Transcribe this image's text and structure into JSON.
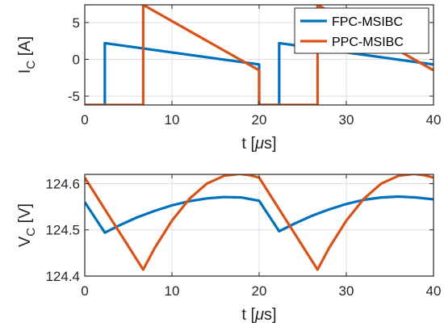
{
  "chart_data": [
    {
      "type": "line",
      "xlabel_main": "t [",
      "xlabel_sym": "μ",
      "xlabel_unit": "s]",
      "ylabel_main": "I",
      "ylabel_sub": "C",
      "ylabel_unit": " [A]",
      "xlim": [
        0,
        40
      ],
      "ylim": [
        -6.2,
        7.4
      ],
      "xticks": [
        0,
        10,
        20,
        30,
        40
      ],
      "yticks": [
        -5,
        0,
        5
      ],
      "grid": true,
      "legend": "top-right",
      "series": [
        {
          "name": "FPC-MSIBC",
          "color": "#0072BD",
          "x": [
            0,
            2.3,
            2.3,
            20,
            20,
            22.3,
            22.3,
            40
          ],
          "y": [
            -6.2,
            -6.2,
            2.2,
            -0.7,
            -6.2,
            -6.2,
            2.2,
            -0.7
          ]
        },
        {
          "name": "PPC-MSIBC",
          "color": "#D95319",
          "x": [
            0,
            6.7,
            6.7,
            20,
            20,
            26.7,
            26.7,
            40
          ],
          "y": [
            -6.2,
            -6.2,
            7.4,
            -1.5,
            -6.2,
            -6.2,
            7.4,
            -1.5
          ]
        }
      ]
    },
    {
      "type": "line",
      "xlabel_main": "t [",
      "xlabel_sym": "μ",
      "xlabel_unit": "s]",
      "ylabel_main": "V",
      "ylabel_sub": "C",
      "ylabel_unit": " [V]",
      "xlim": [
        0,
        40
      ],
      "ylim": [
        124.4,
        124.62
      ],
      "xticks": [
        0,
        10,
        20,
        30,
        40
      ],
      "yticks": [
        124.4,
        124.5,
        124.6
      ],
      "ytick_labels": [
        "124.4",
        "124.5",
        "124.6"
      ],
      "grid": true,
      "series": [
        {
          "name": "FPC-MSIBC",
          "color": "#0072BD",
          "x": [
            0,
            2.3,
            4,
            6,
            8,
            10,
            12,
            14,
            16,
            18,
            20,
            22.3,
            24,
            26,
            28,
            30,
            32,
            34,
            36,
            38,
            40
          ],
          "y": [
            124.56,
            124.494,
            124.51,
            124.527,
            124.541,
            124.553,
            124.562,
            124.568,
            124.571,
            124.57,
            124.563,
            124.497,
            124.513,
            124.53,
            124.544,
            124.556,
            124.565,
            124.57,
            124.572,
            124.57,
            124.566
          ]
        },
        {
          "name": "PPC-MSIBC",
          "color": "#D95319",
          "x": [
            0,
            6.7,
            8,
            10,
            12,
            14,
            16,
            17.8,
            19,
            20,
            26.7,
            28,
            30,
            32,
            34,
            36,
            37.8,
            39,
            40
          ],
          "y": [
            124.613,
            124.414,
            124.46,
            124.52,
            124.567,
            124.6,
            124.617,
            124.621,
            124.618,
            124.613,
            124.414,
            124.46,
            124.52,
            124.567,
            124.6,
            124.617,
            124.621,
            124.618,
            124.613
          ]
        }
      ]
    }
  ]
}
